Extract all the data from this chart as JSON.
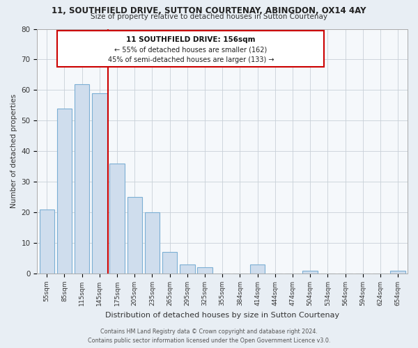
{
  "title": "11, SOUTHFIELD DRIVE, SUTTON COURTENAY, ABINGDON, OX14 4AY",
  "subtitle": "Size of property relative to detached houses in Sutton Courtenay",
  "xlabel": "Distribution of detached houses by size in Sutton Courtenay",
  "ylabel": "Number of detached properties",
  "bin_labels": [
    "55sqm",
    "85sqm",
    "115sqm",
    "145sqm",
    "175sqm",
    "205sqm",
    "235sqm",
    "265sqm",
    "295sqm",
    "325sqm",
    "355sqm",
    "384sqm",
    "414sqm",
    "444sqm",
    "474sqm",
    "504sqm",
    "534sqm",
    "564sqm",
    "594sqm",
    "624sqm",
    "654sqm"
  ],
  "bar_values": [
    21,
    54,
    62,
    59,
    36,
    25,
    20,
    7,
    3,
    2,
    0,
    0,
    3,
    0,
    0,
    1,
    0,
    0,
    0,
    0,
    1
  ],
  "bar_color": "#cfdded",
  "bar_edge_color": "#7bafd4",
  "vline_x": 3.5,
  "vline_color": "#cc0000",
  "ylim": [
    0,
    80
  ],
  "yticks": [
    0,
    10,
    20,
    30,
    40,
    50,
    60,
    70,
    80
  ],
  "annotation_title": "11 SOUTHFIELD DRIVE: 156sqm",
  "annotation_line1": "← 55% of detached houses are smaller (162)",
  "annotation_line2": "45% of semi-detached houses are larger (133) →",
  "annotation_box_color": "#cc0000",
  "footer_line1": "Contains HM Land Registry data © Crown copyright and database right 2024.",
  "footer_line2": "Contains public sector information licensed under the Open Government Licence v3.0.",
  "bg_color": "#e8eef4",
  "plot_bg_color": "#f5f8fb",
  "grid_color": "#c8d0d8"
}
